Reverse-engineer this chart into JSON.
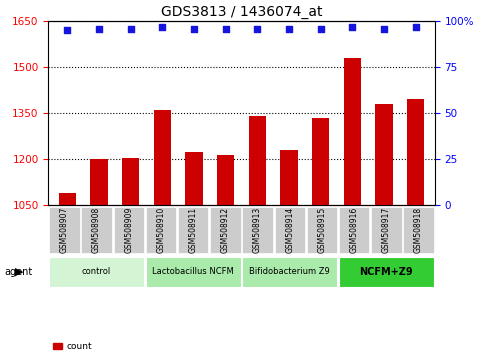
{
  "title": "GDS3813 / 1436074_at",
  "categories": [
    "GSM508907",
    "GSM508908",
    "GSM508909",
    "GSM508910",
    "GSM508911",
    "GSM508912",
    "GSM508913",
    "GSM508914",
    "GSM508915",
    "GSM508916",
    "GSM508917",
    "GSM508918"
  ],
  "bar_values": [
    1090,
    1200,
    1205,
    1360,
    1225,
    1215,
    1340,
    1230,
    1335,
    1530,
    1380,
    1395
  ],
  "percentile_values": [
    95,
    96,
    96,
    97,
    96,
    96,
    96,
    96,
    96,
    97,
    96,
    97
  ],
  "bar_color": "#cc0000",
  "dot_color": "#1515dd",
  "ylim_left": [
    1050,
    1650
  ],
  "ylim_right": [
    0,
    100
  ],
  "yticks_left": [
    1050,
    1200,
    1350,
    1500,
    1650
  ],
  "yticks_right": [
    0,
    25,
    50,
    75,
    100
  ],
  "groups": [
    {
      "label": "control",
      "start": 0,
      "end": 3,
      "color": "#d4f5d4"
    },
    {
      "label": "Lactobacillus NCFM",
      "start": 3,
      "end": 6,
      "color": "#aaeaaa"
    },
    {
      "label": "Bifidobacterium Z9",
      "start": 6,
      "end": 9,
      "color": "#aaeaaa"
    },
    {
      "label": "NCFM+Z9",
      "start": 9,
      "end": 12,
      "color": "#33cc33"
    }
  ],
  "agent_label": "agent",
  "legend_count_label": "count",
  "tick_bg": "#cccccc",
  "bar_width": 0.55
}
